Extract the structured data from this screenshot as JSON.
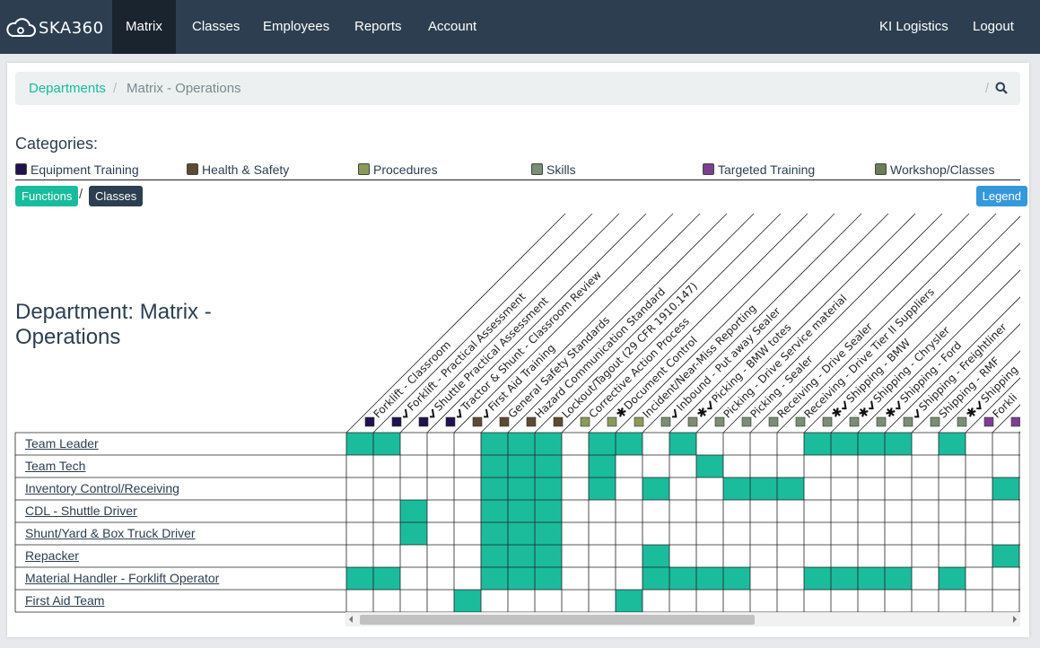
{
  "nav": {
    "brand": "SKA360",
    "items": [
      "Matrix",
      "Classes",
      "Employees",
      "Reports",
      "Account"
    ],
    "company": "KI Logistics",
    "logout": "Logout"
  },
  "breadcrumb": {
    "parent": "Departments",
    "current": "Matrix - Operations"
  },
  "categories": {
    "title": "Categories:",
    "items": [
      {
        "label": "Equipment Training",
        "color": "#20124d"
      },
      {
        "label": "Health & Safety",
        "color": "#5c4a32"
      },
      {
        "label": "Procedures",
        "color": "#8a9a5b"
      },
      {
        "label": "Skills",
        "color": "#7a8e73"
      },
      {
        "label": "Targeted Training",
        "color": "#7b3f8f"
      },
      {
        "label": "Workshop/Classes",
        "color": "#6b7d55"
      }
    ]
  },
  "buttons": {
    "functions": "Functions",
    "classes": "Classes",
    "legend": "Legend"
  },
  "department_title": "Department: Matrix - Operations",
  "colors": {
    "filled": "#1abc9c"
  },
  "columns": [
    {
      "label": "Forklift - Classroom",
      "cat": 0,
      "mark": ""
    },
    {
      "label": "Forklift - Practical Assessment",
      "cat": 0,
      "mark": "check"
    },
    {
      "label": "Shuttle Practical Assessment",
      "cat": 0,
      "mark": "check"
    },
    {
      "label": "Tractor & Shunt - Classroom Review",
      "cat": 0,
      "mark": "check"
    },
    {
      "label": "First Aid Training",
      "cat": 1,
      "mark": "check"
    },
    {
      "label": "General Safety Standards",
      "cat": 1,
      "mark": ""
    },
    {
      "label": "Hazard Communication Standard",
      "cat": 1,
      "mark": ""
    },
    {
      "label": "Lockout/Tagout (29 CFR 1910.147)",
      "cat": 1,
      "mark": ""
    },
    {
      "label": "Corrective Action Process",
      "cat": 2,
      "mark": ""
    },
    {
      "label": "Document Control",
      "cat": 2,
      "mark": "star"
    },
    {
      "label": "Incident/Near-Miss Reporting",
      "cat": 2,
      "mark": ""
    },
    {
      "label": "Inbound - Put away Sealer",
      "cat": 3,
      "mark": "check"
    },
    {
      "label": "Picking - BMW totes",
      "cat": 3,
      "mark": "starcheck"
    },
    {
      "label": "Picking - Drive Service material",
      "cat": 3,
      "mark": ""
    },
    {
      "label": "Picking - Sealer",
      "cat": 3,
      "mark": ""
    },
    {
      "label": "Receiving - Drive Sealer",
      "cat": 3,
      "mark": ""
    },
    {
      "label": "Receiving - Drive Tier II Suppliers",
      "cat": 3,
      "mark": ""
    },
    {
      "label": "Shipping - BMW",
      "cat": 3,
      "mark": "starcheck"
    },
    {
      "label": "Shipping - Chrysler",
      "cat": 3,
      "mark": "starcheck"
    },
    {
      "label": "Shipping - Ford",
      "cat": 3,
      "mark": "starcheck"
    },
    {
      "label": "Shipping - Freightliner",
      "cat": 3,
      "mark": "check"
    },
    {
      "label": "Shipping - RMF",
      "cat": 3,
      "mark": ""
    },
    {
      "label": "Shipping",
      "cat": 3,
      "mark": "starcheck"
    },
    {
      "label": "Forkli",
      "cat": 4,
      "mark": ""
    },
    {
      "label": "",
      "cat": 4,
      "mark": ""
    }
  ],
  "rows": [
    {
      "label": "Team Leader",
      "cells": [
        1,
        1,
        0,
        0,
        0,
        1,
        1,
        1,
        0,
        1,
        1,
        0,
        1,
        0,
        0,
        0,
        0,
        1,
        1,
        1,
        1,
        0,
        1,
        0,
        0
      ]
    },
    {
      "label": "Team Tech",
      "cells": [
        0,
        0,
        0,
        0,
        0,
        1,
        1,
        1,
        0,
        1,
        0,
        0,
        0,
        1,
        0,
        0,
        0,
        0,
        0,
        0,
        0,
        0,
        0,
        0,
        0
      ]
    },
    {
      "label": "Inventory Control/Receiving",
      "cells": [
        0,
        0,
        0,
        0,
        0,
        1,
        1,
        1,
        0,
        1,
        0,
        1,
        0,
        0,
        1,
        1,
        1,
        0,
        0,
        0,
        0,
        0,
        0,
        0,
        1
      ]
    },
    {
      "label": "CDL - Shuttle Driver",
      "cells": [
        0,
        0,
        1,
        0,
        0,
        1,
        1,
        1,
        0,
        0,
        0,
        0,
        0,
        0,
        0,
        0,
        0,
        0,
        0,
        0,
        0,
        0,
        0,
        0,
        0
      ]
    },
    {
      "label": "Shunt/Yard & Box Truck Driver",
      "cells": [
        0,
        0,
        1,
        0,
        0,
        1,
        1,
        1,
        0,
        0,
        0,
        0,
        0,
        0,
        0,
        0,
        0,
        0,
        0,
        0,
        0,
        0,
        0,
        0,
        0
      ]
    },
    {
      "label": "Repacker",
      "cells": [
        0,
        0,
        0,
        0,
        0,
        1,
        1,
        1,
        0,
        0,
        0,
        1,
        0,
        0,
        0,
        0,
        0,
        0,
        0,
        0,
        0,
        0,
        0,
        0,
        1
      ]
    },
    {
      "label": "Material Handler - Forklift Operator",
      "cells": [
        1,
        1,
        0,
        0,
        0,
        1,
        1,
        1,
        0,
        0,
        0,
        1,
        1,
        1,
        1,
        0,
        0,
        1,
        1,
        1,
        1,
        0,
        1,
        0,
        0
      ]
    },
    {
      "label": "First Aid Team",
      "cells": [
        0,
        0,
        0,
        0,
        1,
        0,
        0,
        0,
        0,
        0,
        1,
        0,
        0,
        0,
        0,
        0,
        0,
        0,
        0,
        0,
        0,
        0,
        0,
        0,
        0
      ]
    }
  ]
}
